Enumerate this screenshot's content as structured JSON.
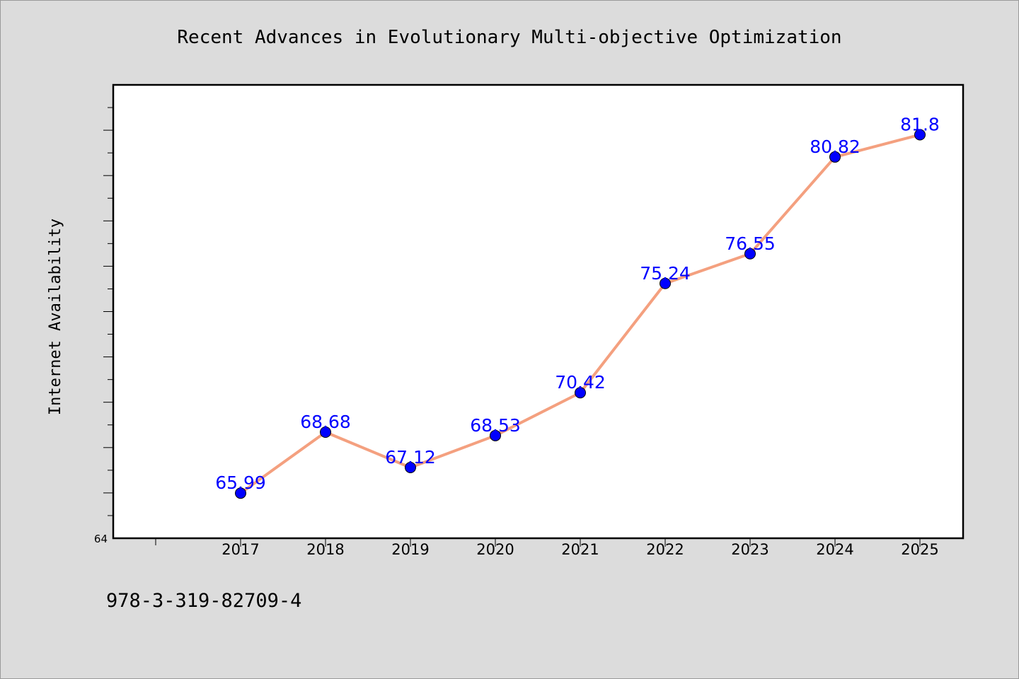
{
  "footer": {
    "isbn": "978-3-319-82709-4"
  },
  "chart_data": {
    "type": "line",
    "title": "Recent Advances in Evolutionary Multi-objective Optimization",
    "xlabel": "",
    "ylabel": "Internet Availability",
    "categories": [
      "2017",
      "2018",
      "2019",
      "2020",
      "2021",
      "2022",
      "2023",
      "2024",
      "2025"
    ],
    "series": [
      {
        "values": [
          65.99,
          68.68,
          67.12,
          68.53,
          70.42,
          75.24,
          76.55,
          80.82,
          81.8
        ],
        "labels": [
          "65.99",
          "68.68",
          "67.12",
          "68.53",
          "70.42",
          "75.24",
          "76.55",
          "80.82",
          "81.8"
        ],
        "line_color": "#f4a07f",
        "marker_color": "#0000ff"
      }
    ],
    "ylim": [
      64,
      84
    ],
    "ytick_labels": [
      "64"
    ],
    "grid": false,
    "legend": "none"
  }
}
